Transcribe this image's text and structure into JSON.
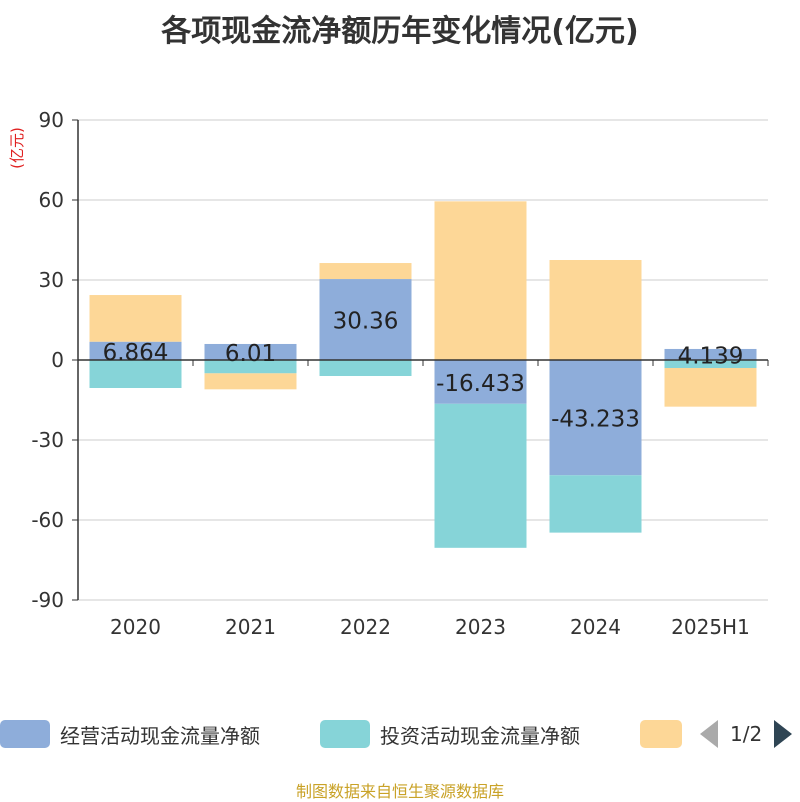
{
  "title": "各项现金流净额历年变化情况(亿元)",
  "footer": "制图数据来自恒生聚源数据库",
  "legend": {
    "items": [
      {
        "label": "经营活动现金流量净额",
        "color": "#8eadda"
      },
      {
        "label": "投资活动现金流量净额",
        "color": "#86d4d8"
      },
      {
        "label": "",
        "color": "#fdd797"
      }
    ],
    "page": "1/2"
  },
  "chart_data": {
    "type": "bar",
    "stacked": true,
    "title": "各项现金流净额历年变化情况(亿元)",
    "ylabel": "(亿元)",
    "xlabel": "",
    "ylim": [
      -90,
      90
    ],
    "yticks": [
      90,
      60,
      30,
      0,
      -30,
      -60,
      -90
    ],
    "categories": [
      "2020",
      "2021",
      "2022",
      "2023",
      "2024",
      "2025H1"
    ],
    "grid": true,
    "legend_position": "bottom",
    "series": [
      {
        "name": "经营活动现金流量净额",
        "color": "#8eadda",
        "values": [
          6.864,
          6.01,
          30.36,
          -16.433,
          -43.233,
          4.139
        ],
        "labels": [
          "6.864",
          "6.01",
          "30.36",
          "-16.433",
          "-43.233",
          "4.139"
        ]
      },
      {
        "name": "投资活动现金流量净额",
        "color": "#86d4d8",
        "values": [
          -10.5,
          -5.0,
          -6.0,
          -54,
          -21.5,
          -3.0
        ]
      },
      {
        "name": "",
        "color": "#fdd797",
        "values": [
          17.5,
          -6.0,
          6.0,
          59.5,
          37.5,
          -14.5
        ]
      }
    ]
  }
}
